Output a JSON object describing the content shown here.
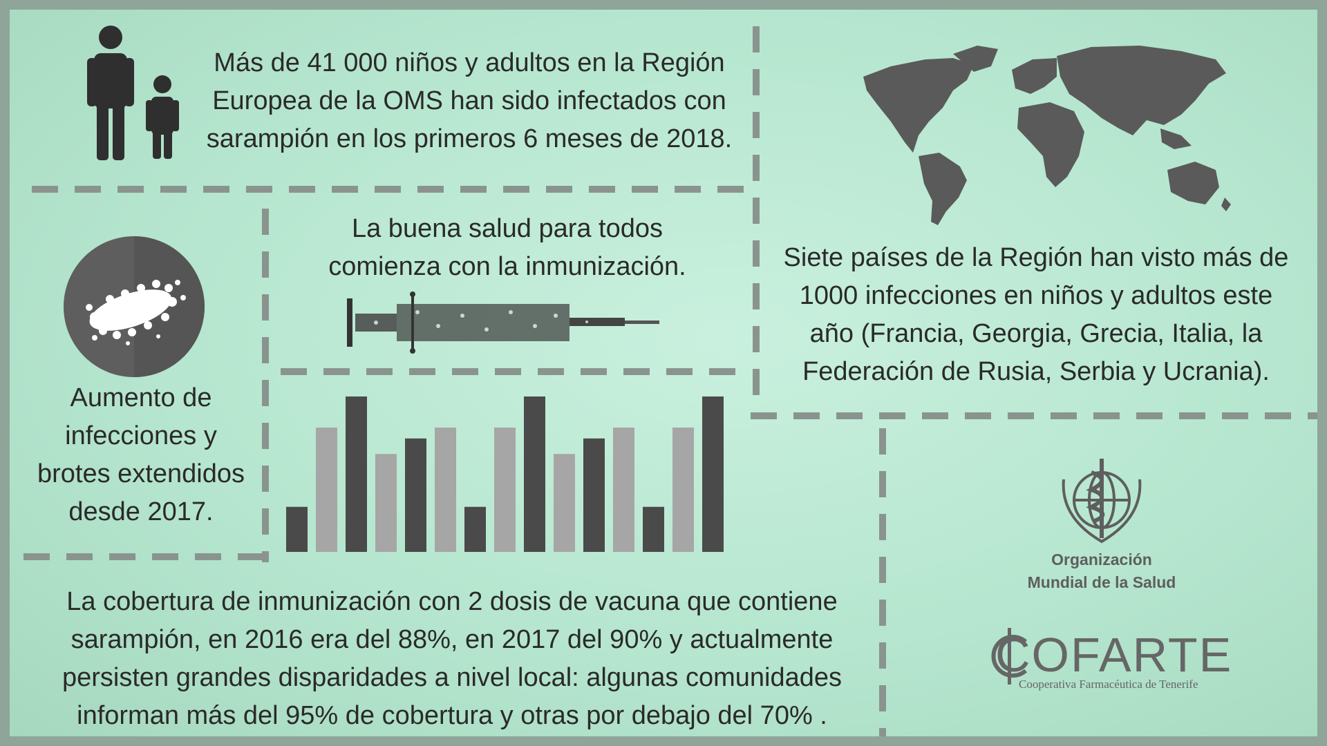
{
  "top_text": [
    "Más de 41 000 niños y adultos en la Región",
    "Europea de la OMS han sido infectados con",
    "sarampión en los primeros 6 meses de 2018."
  ],
  "middle_text": [
    "La buena salud para todos",
    "comienza con la inmunización."
  ],
  "right_text": [
    "Siete países de la Región han visto más de",
    "1000 infecciones en niños y adultos este",
    "año (Francia, Georgia, Grecia, Italia, la",
    "Federación de Rusia, Serbia y Ucrania)."
  ],
  "left_text": [
    "Aumento de",
    "infecciones y",
    "brotes extendidos",
    "desde 2017."
  ],
  "bottom_text": [
    "La cobertura de inmunización con 2 dosis de vacuna que contiene",
    "sarampión, en 2016 era del 88%, en 2017 del 90% y actualmente",
    "persisten grandes disparidades a nivel local: algunas comunidades",
    "informan más del 95% de cobertura y otras por debajo del 70% ."
  ],
  "who_label": [
    "Organización",
    "Mundial de la Salud"
  ],
  "cofarte": {
    "name": "COFARTE",
    "subtitle": "Cooperativa Farmacéutica de Tenerife"
  },
  "colors": {
    "dark": "#4a4a4a",
    "light": "#a6a6a6",
    "dash": "#8a948e",
    "bg": "#b9e8d1"
  },
  "decorative_bars": {
    "heights": [
      0.29,
      0.8,
      1.0,
      0.63,
      0.73,
      0.8,
      0.29,
      0.8,
      1.0,
      0.63,
      0.73,
      0.8,
      0.29,
      0.8,
      1.0
    ],
    "shades": [
      "dark",
      "light",
      "dark",
      "light",
      "dark",
      "light",
      "dark",
      "light",
      "dark",
      "light",
      "dark",
      "light",
      "dark",
      "light",
      "dark"
    ]
  }
}
